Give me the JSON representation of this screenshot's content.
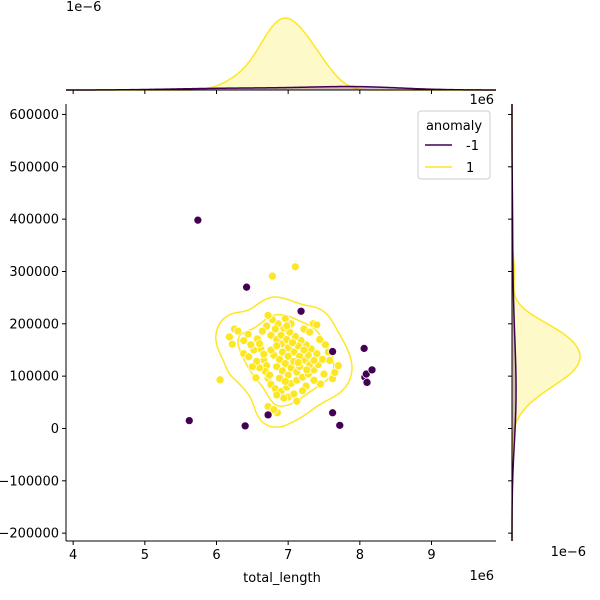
{
  "chart_data": {
    "type": "scatter",
    "xlabel": "total_length",
    "ylabel": "",
    "x_offset_label": "1e6",
    "y_offset_label": "1e6",
    "top_marginal_offset_label": "1e−6",
    "right_marginal_offset_label": "1e−6",
    "xlim": [
      3.9,
      9.9
    ],
    "ylim": [
      -215000,
      620000
    ],
    "x_ticks": [
      4,
      5,
      6,
      7,
      8,
      9
    ],
    "x_tick_labels": [
      "4",
      "5",
      "6",
      "7",
      "8",
      "9"
    ],
    "y_ticks": [
      -200000,
      -100000,
      0,
      100000,
      200000,
      300000,
      400000,
      500000,
      600000
    ],
    "y_tick_labels": [
      "−200000",
      "−100000",
      "0",
      "100000",
      "200000",
      "300000",
      "400000",
      "500000",
      "600000"
    ],
    "grid": false,
    "legend": {
      "title": "anomaly",
      "placement": "top-right"
    },
    "series": [
      {
        "name": "-1",
        "color": "#440154",
        "points": [
          [
            5.74,
            398000
          ],
          [
            5.62,
            15000
          ],
          [
            6.42,
            270000
          ],
          [
            6.4,
            5000
          ],
          [
            6.72,
            26000
          ],
          [
            7.18,
            224000
          ],
          [
            7.62,
            147000
          ],
          [
            7.62,
            30000
          ],
          [
            7.72,
            6000
          ],
          [
            8.06,
            153000
          ],
          [
            8.07,
            98000
          ],
          [
            8.09,
            104000
          ],
          [
            8.1,
            88000
          ],
          [
            8.17,
            112000
          ]
        ]
      },
      {
        "name": "1",
        "color": "#fde725",
        "points": [
          [
            6.05,
            93000
          ],
          [
            6.78,
            291000
          ],
          [
            7.1,
            309000
          ],
          [
            7.62,
            95000
          ],
          [
            7.65,
            107000
          ],
          [
            7.7,
            120000
          ],
          [
            7.35,
            200000
          ],
          [
            6.72,
            42000
          ],
          [
            6.85,
            30000
          ],
          [
            6.8,
            36000
          ],
          [
            7.12,
            52000
          ],
          [
            7.0,
            60000
          ],
          [
            7.25,
            81000
          ],
          [
            7.45,
            85000
          ],
          [
            6.55,
            97000
          ],
          [
            6.25,
            190000
          ],
          [
            6.3,
            186000
          ],
          [
            6.44,
            180000
          ],
          [
            6.38,
            168000
          ],
          [
            6.18,
            175000
          ],
          [
            6.22,
            161000
          ],
          [
            6.38,
            143000
          ],
          [
            6.45,
            137000
          ],
          [
            6.57,
            171000
          ],
          [
            6.62,
            152000
          ],
          [
            6.66,
            131000
          ],
          [
            6.7,
            120000
          ],
          [
            6.68,
            109000
          ],
          [
            6.72,
            96000
          ],
          [
            6.76,
            84000
          ],
          [
            6.82,
            76000
          ],
          [
            6.9,
            71000
          ],
          [
            6.98,
            79000
          ],
          [
            7.04,
            86000
          ],
          [
            7.12,
            92000
          ],
          [
            7.2,
            98000
          ],
          [
            7.28,
            104000
          ],
          [
            7.36,
            112000
          ],
          [
            7.42,
            122000
          ],
          [
            7.48,
            132000
          ],
          [
            7.4,
            143000
          ],
          [
            7.32,
            152000
          ],
          [
            7.25,
            160000
          ],
          [
            7.18,
            168000
          ],
          [
            7.1,
            176000
          ],
          [
            7.02,
            184000
          ],
          [
            6.94,
            192000
          ],
          [
            6.86,
            200000
          ],
          [
            6.78,
            208000
          ],
          [
            6.7,
            196000
          ],
          [
            6.64,
            186000
          ],
          [
            6.76,
            178000
          ],
          [
            6.84,
            170000
          ],
          [
            6.92,
            162000
          ],
          [
            7.0,
            154000
          ],
          [
            7.08,
            146000
          ],
          [
            7.16,
            138000
          ],
          [
            7.24,
            130000
          ],
          [
            7.3,
            122000
          ],
          [
            6.8,
            140000
          ],
          [
            6.88,
            132000
          ],
          [
            6.96,
            124000
          ],
          [
            7.04,
            116000
          ],
          [
            7.12,
            108000
          ],
          [
            6.84,
            118000
          ],
          [
            6.92,
            110000
          ],
          [
            7.0,
            102000
          ],
          [
            7.08,
            128000
          ],
          [
            7.16,
            118000
          ],
          [
            6.76,
            150000
          ],
          [
            6.84,
            158000
          ],
          [
            6.92,
            146000
          ],
          [
            7.0,
            138000
          ],
          [
            6.6,
            162000
          ],
          [
            6.52,
            150000
          ],
          [
            6.48,
            160000
          ],
          [
            7.44,
            170000
          ],
          [
            7.52,
            160000
          ],
          [
            7.56,
            146000
          ],
          [
            7.22,
            190000
          ],
          [
            7.3,
            184000
          ],
          [
            6.96,
            210000
          ],
          [
            7.04,
            200000
          ],
          [
            6.72,
            216000
          ],
          [
            6.88,
            96000
          ],
          [
            6.96,
            90000
          ],
          [
            7.36,
            92000
          ],
          [
            7.5,
            104000
          ],
          [
            6.6,
            116000
          ],
          [
            6.56,
            128000
          ],
          [
            7.2,
            72000
          ],
          [
            7.08,
            66000
          ],
          [
            6.94,
            58000
          ],
          [
            6.84,
            64000
          ],
          [
            7.28,
            140000
          ],
          [
            7.36,
            130000
          ],
          [
            6.74,
            102000
          ],
          [
            6.66,
            142000
          ],
          [
            7.14,
            158000
          ],
          [
            7.22,
            150000
          ],
          [
            6.9,
            178000
          ],
          [
            6.98,
            170000
          ],
          [
            7.06,
            164000
          ],
          [
            6.82,
            190000
          ],
          [
            7.26,
            112000
          ],
          [
            7.4,
            198000
          ],
          [
            6.5,
            118000
          ],
          [
            7.58,
            130000
          ],
          [
            6.98,
            196000
          ],
          [
            7.14,
            126000
          ]
        ]
      }
    ]
  }
}
